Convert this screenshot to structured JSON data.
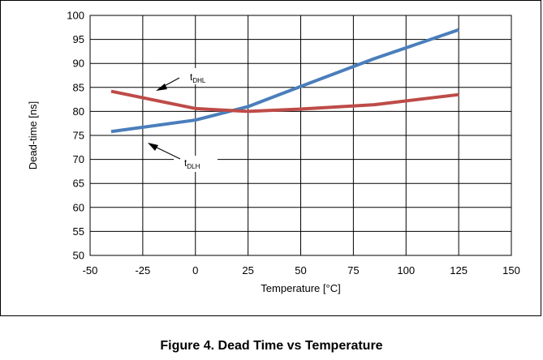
{
  "caption": "Figure 4. Dead Time vs Temperature",
  "chart_data": {
    "type": "line",
    "title": "",
    "xlabel": "Temperature [°C]",
    "ylabel": "Dead-time [ns]",
    "xlim": [
      -50,
      150
    ],
    "ylim": [
      50,
      100
    ],
    "xticks": [
      -50,
      -25,
      0,
      25,
      50,
      75,
      100,
      125,
      150
    ],
    "yticks": [
      50,
      55,
      60,
      65,
      70,
      75,
      80,
      85,
      90,
      95,
      100
    ],
    "grid": true,
    "legend": "none",
    "series": [
      {
        "name": "tDLH",
        "label_main": "t",
        "label_sub": "DLH",
        "color": "#4a7ebb",
        "x": [
          -40,
          0,
          25,
          50,
          85,
          125
        ],
        "y": [
          75.8,
          78.2,
          81.0,
          85.2,
          91.0,
          97.0
        ]
      },
      {
        "name": "tDHL",
        "label_main": "t",
        "label_sub": "DHL",
        "color": "#be4b48",
        "x": [
          -40,
          0,
          25,
          50,
          85,
          125
        ],
        "y": [
          84.2,
          80.6,
          80.0,
          80.5,
          81.4,
          83.5
        ]
      }
    ]
  }
}
